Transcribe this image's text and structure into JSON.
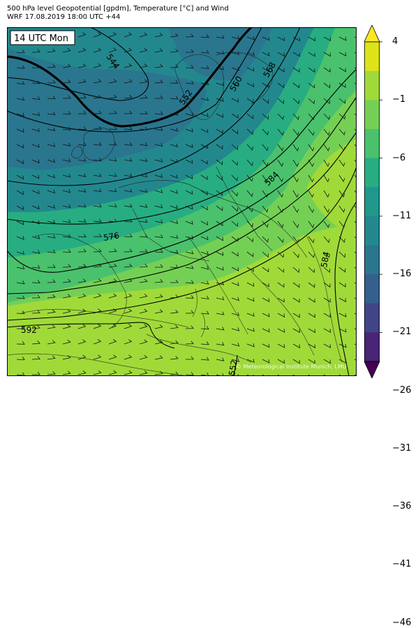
{
  "header": {
    "line1": "500 hPa level Geopotential [gpdm], Temperature [°C] and Wind",
    "line2": "WRF 17.08.2019 18:00 UTC +44"
  },
  "map": {
    "time_label": "14 UTC Mon",
    "credit": "© Meteorological Institute Munich, LMU",
    "contour_labels": [
      "544",
      "552",
      "560",
      "568",
      "584",
      "576",
      "592",
      "584",
      "552"
    ]
  },
  "colorbar": {
    "ticks": [
      "4",
      "−1",
      "−6",
      "−11",
      "−16",
      "−21",
      "−26",
      "−31",
      "−36",
      "−41",
      "−46"
    ],
    "colors": [
      "#fde725",
      "#dde318",
      "#a0da39",
      "#74d055",
      "#4ac16d",
      "#27ad81",
      "#1f978b",
      "#23888e",
      "#2a768e",
      "#355f8d",
      "#414487",
      "#482576",
      "#440154"
    ]
  }
}
